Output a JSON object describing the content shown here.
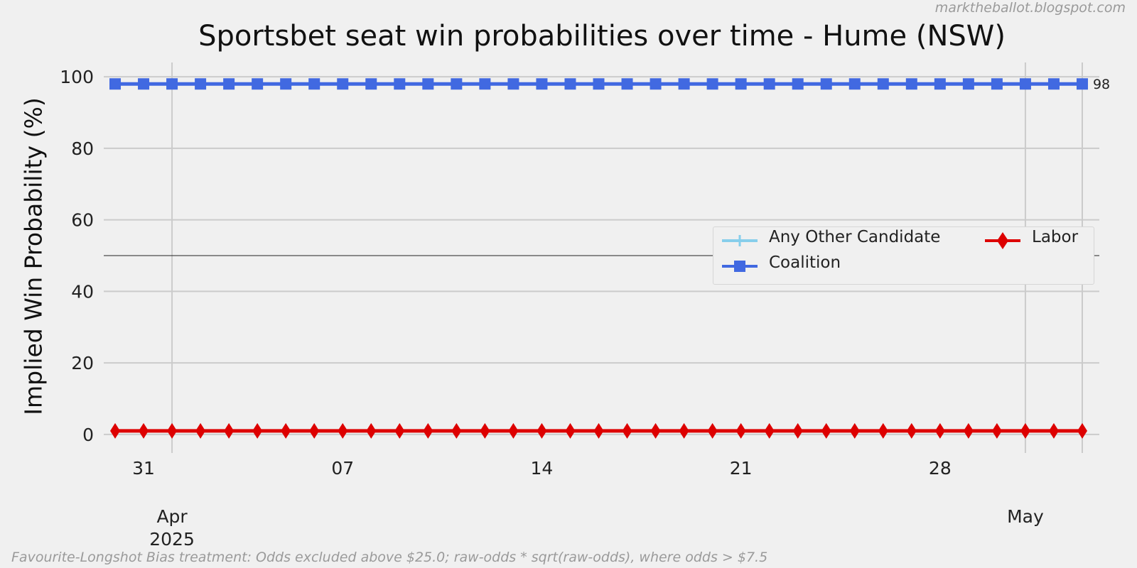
{
  "watermark": "marktheballot.blogspot.com",
  "footnote": "Favourite-Longshot Bias treatment: Odds excluded above $25.0; raw-odds * sqrt(raw-odds), where odds > $7.5",
  "chart_data": {
    "type": "line",
    "title": "Sportsbet seat win probabilities over time - Hume (NSW)",
    "xlabel": "",
    "ylabel": "Implied Win Probability (%)",
    "ylim": [
      -2,
      104
    ],
    "yticks": [
      0,
      20,
      40,
      60,
      80,
      100
    ],
    "x_start": "2025-03-30",
    "x_end": "2025-05-03",
    "xlim": [
      "2025-03-29.6",
      "2025-05-03.6"
    ],
    "x_minor_ticks": [
      {
        "date": "2025-03-31",
        "label": "31"
      },
      {
        "date": "2025-04-07",
        "label": "07"
      },
      {
        "date": "2025-04-14",
        "label": "14"
      },
      {
        "date": "2025-04-21",
        "label": "21"
      },
      {
        "date": "2025-04-28",
        "label": "28"
      }
    ],
    "x_major_ticks": [
      {
        "date": "2025-04-01",
        "label": "Apr\n2025"
      },
      {
        "date": "2025-05-01",
        "label": "May"
      }
    ],
    "reference_line": 50,
    "grid": true,
    "legend_position": "center-right",
    "series": [
      {
        "name": "Any Other Candidate",
        "color": "#87ceeb",
        "marker": "plus",
        "values": []
      },
      {
        "name": "Coalition",
        "color": "#4169e1",
        "marker": "square",
        "constant_value": 98,
        "end_label": "98"
      },
      {
        "name": "Labor",
        "color": "#dd0000",
        "marker": "diamond",
        "constant_value": 1
      }
    ]
  }
}
